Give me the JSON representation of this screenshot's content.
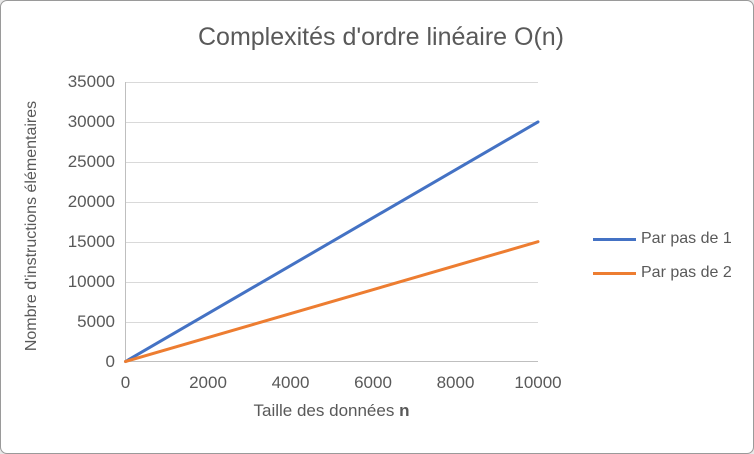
{
  "chart_data": {
    "type": "line",
    "title": "Complexités d'ordre linéaire O(n)",
    "xlabel": "Taille des données",
    "xlabel_bold": "n",
    "ylabel": "Nombre d'instructions élémentaires",
    "x": [
      0,
      10000
    ],
    "series": [
      {
        "name": "Par pas de 1",
        "color": "#4472C4",
        "values": [
          0,
          30000
        ]
      },
      {
        "name": "Par pas de 2",
        "color": "#ED7D31",
        "values": [
          0,
          15000
        ]
      }
    ],
    "xlim": [
      0,
      10000
    ],
    "ylim": [
      0,
      35000
    ],
    "x_ticks": [
      0,
      2000,
      4000,
      6000,
      8000,
      10000
    ],
    "y_ticks": [
      0,
      5000,
      10000,
      15000,
      20000,
      25000,
      30000,
      35000
    ],
    "grid": "horizontal",
    "legend_position": "right",
    "styles": {
      "text_color": "#595959",
      "gridline_color": "#d9d9d9",
      "axis_color": "#bfbfbf",
      "line_width": 3,
      "background": "#ffffff",
      "border_color": "#9a9a9a"
    }
  }
}
